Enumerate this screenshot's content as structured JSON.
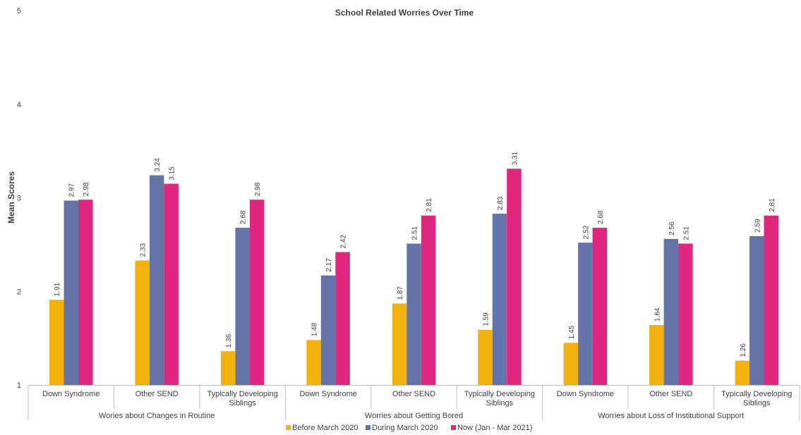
{
  "chart_data": {
    "type": "bar",
    "title": "School Related Worries Over Time",
    "ylabel": "Mean Scores",
    "ylim": [
      1,
      5
    ],
    "yticks": [
      "1",
      "2",
      "3",
      "4",
      "5"
    ],
    "grid": false,
    "legend_position": "bottom",
    "groups": [
      {
        "label": "Wories about Changes in Routine",
        "categories": [
          [
            "Down Syndrome"
          ],
          [
            "Other SEND"
          ],
          [
            "Typically Developing",
            "Siblings"
          ]
        ]
      },
      {
        "label": "Worries about Getting Bored",
        "categories": [
          [
            "Down Syndrome"
          ],
          [
            "Other SEND"
          ],
          [
            "Typically Developing",
            "Siblings"
          ]
        ]
      },
      {
        "label": "Worries about Loss of Institutional Support",
        "categories": [
          [
            "Down Syndrome"
          ],
          [
            "Other SEND"
          ],
          [
            "Typically Developing",
            "Siblings"
          ]
        ]
      }
    ],
    "series": [
      {
        "name": "Before March 2020",
        "color": "#F2B10C",
        "values": [
          1.91,
          2.33,
          1.36,
          1.48,
          1.87,
          1.59,
          1.45,
          1.64,
          1.26
        ],
        "labels": [
          "1.91",
          "2.33",
          "1.36",
          "1.48",
          "1.87",
          "1.59",
          "1.45",
          "1.64",
          "1.26"
        ]
      },
      {
        "name": "During March 2020",
        "color": "#6574A8",
        "values": [
          2.97,
          3.24,
          2.68,
          2.17,
          2.51,
          2.83,
          2.52,
          2.56,
          2.59
        ],
        "labels": [
          "2.97",
          "3.24",
          "2.68",
          "2.17",
          "2.51",
          "2.83",
          "2.52",
          "2.56",
          "2.59"
        ]
      },
      {
        "name": "Now (Jan - Mar 2021)",
        "color": "#E0267F",
        "values": [
          2.98,
          3.15,
          2.98,
          2.42,
          2.81,
          3.31,
          2.68,
          2.51,
          2.81
        ],
        "labels": [
          "2.98",
          "3.15",
          "2.98",
          "2.42",
          "2.81",
          "3.31",
          "2.68",
          "2.51",
          "2.81"
        ]
      }
    ]
  }
}
